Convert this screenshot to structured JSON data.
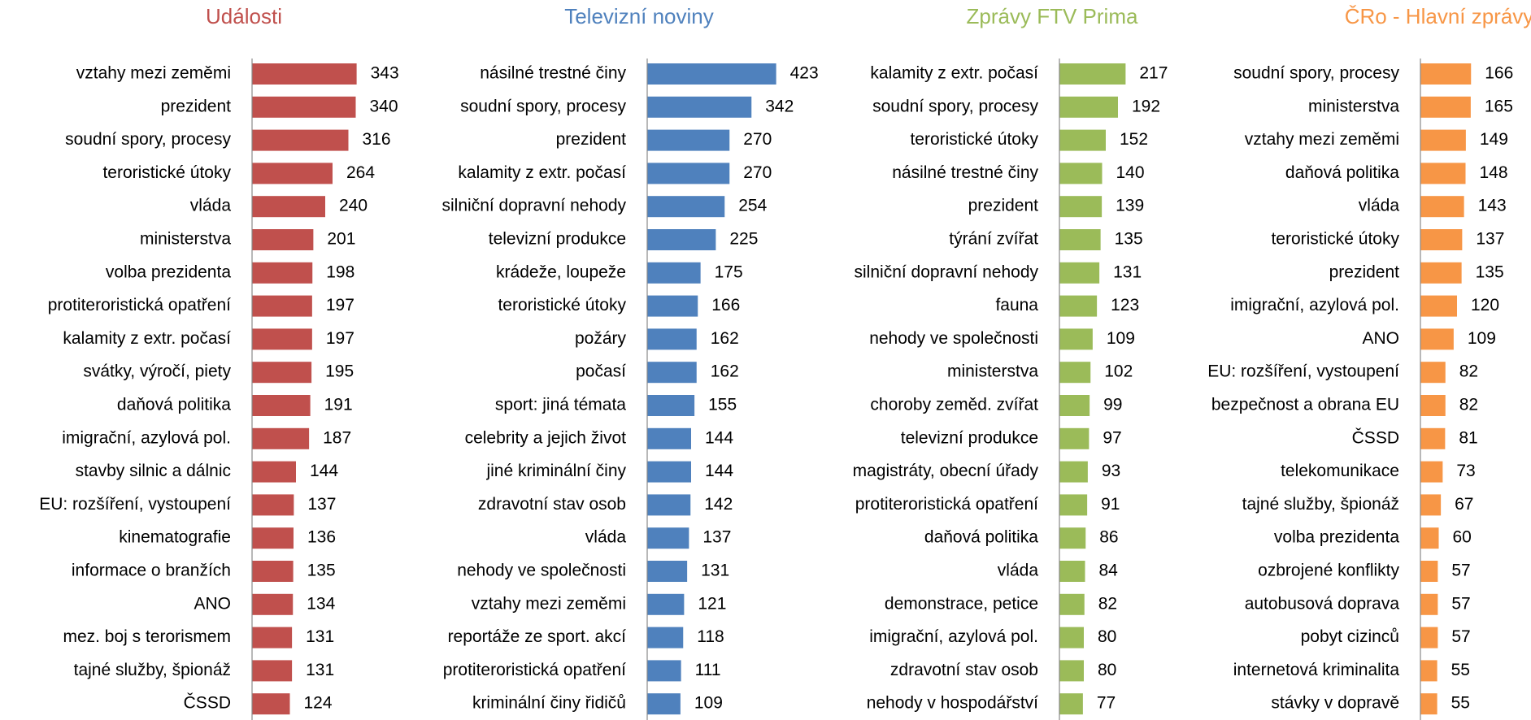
{
  "chart_data": [
    {
      "type": "bar",
      "orientation": "horizontal",
      "title": "Události",
      "color": "#c0504d",
      "categories": [
        "vztahy mezi zeměmi",
        "prezident",
        "soudní spory, procesy",
        "teroristické útoky",
        "vláda",
        "ministerstva",
        "volba prezidenta",
        "protiteroristická opatření",
        "kalamity z extr. počasí",
        "svátky, výročí, piety",
        "daňová politika",
        "imigrační, azylová pol.",
        "stavby silnic a dálnic",
        "EU: rozšíření, vystoupení",
        "kinematografie",
        "informace o branžích",
        "ANO",
        "mez. boj s terorismem",
        "tajné služby, špionáž",
        "ČSSD"
      ],
      "values": [
        343,
        340,
        316,
        264,
        240,
        201,
        198,
        197,
        197,
        195,
        191,
        187,
        144,
        137,
        136,
        135,
        134,
        131,
        131,
        124
      ]
    },
    {
      "type": "bar",
      "orientation": "horizontal",
      "title": "Televizní noviny",
      "color": "#4f81bd",
      "categories": [
        "násilné trestné činy",
        "soudní spory, procesy",
        "prezident",
        "kalamity z extr. počasí",
        "silniční dopravní nehody",
        "televizní produkce",
        "krádeže, loupeže",
        "teroristické útoky",
        "požáry",
        "počasí",
        "sport: jiná témata",
        "celebrity a jejich život",
        "jiné kriminální činy",
        "zdravotní stav osob",
        "vláda",
        "nehody ve společnosti",
        "vztahy mezi zeměmi",
        "reportáže ze sport. akcí",
        "protiteroristická opatření",
        "kriminální činy řidičů"
      ],
      "values": [
        423,
        342,
        270,
        270,
        254,
        225,
        175,
        166,
        162,
        162,
        155,
        144,
        144,
        142,
        137,
        131,
        121,
        118,
        111,
        109
      ]
    },
    {
      "type": "bar",
      "orientation": "horizontal",
      "title": "Zprávy FTV Prima",
      "color": "#9bbb59",
      "categories": [
        "kalamity z extr. počasí",
        "soudní spory, procesy",
        "teroristické útoky",
        "násilné trestné činy",
        "prezident",
        "týrání zvířat",
        "silniční dopravní nehody",
        "fauna",
        "nehody ve společnosti",
        "ministerstva",
        "choroby zeměd. zvířat",
        "televizní produkce",
        "magistráty, obecní úřady",
        "protiteroristická opatření",
        "daňová politika",
        "vláda",
        "demonstrace, petice",
        "imigrační, azylová pol.",
        "zdravotní stav osob",
        "nehody v hospodářství"
      ],
      "values": [
        217,
        192,
        152,
        140,
        139,
        135,
        131,
        123,
        109,
        102,
        99,
        97,
        93,
        91,
        86,
        84,
        82,
        80,
        80,
        77
      ]
    },
    {
      "type": "bar",
      "orientation": "horizontal",
      "title": "ČRo - Hlavní zprávy",
      "color": "#f79646",
      "categories": [
        "soudní spory, procesy",
        "ministerstva",
        "vztahy mezi zeměmi",
        "daňová politika",
        "vláda",
        "teroristické útoky",
        "prezident",
        "imigrační, azylová pol.",
        "ANO",
        "EU: rozšíření, vystoupení",
        "bezpečnost a obrana EU",
        "ČSSD",
        "telekomunikace",
        "tajné služby, špionáž",
        "volba prezidenta",
        "ozbrojené konflikty",
        "autobusová doprava",
        "pobyt cizinců",
        "internetová kriminalita",
        "stávky v dopravě"
      ],
      "values": [
        166,
        165,
        149,
        148,
        143,
        137,
        135,
        120,
        109,
        82,
        82,
        81,
        73,
        67,
        60,
        57,
        57,
        57,
        55,
        55
      ]
    }
  ]
}
